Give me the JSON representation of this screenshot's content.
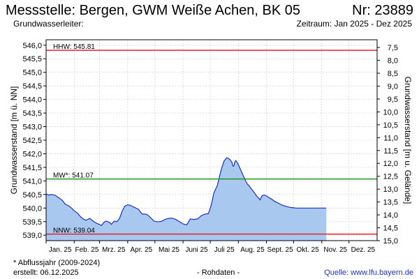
{
  "header": {
    "title": "Messstelle: Bergen, GWM Weiße Achen, BK 05",
    "nr": "Nr: 23889",
    "aquifer_label": "Grundwasserleiter:",
    "period": "Zeitraum: Jan 2025 - Dez 2025"
  },
  "footer": {
    "note": "* Abflussjahr (2009-2024)",
    "created": "erstellt:  06.12.2025",
    "raw": "- Rohdaten -",
    "source": "Quelle: www.lfu.bayern.de"
  },
  "colors": {
    "fill": "#a8c8f0",
    "line": "#1a2fc8",
    "hhw": "#e8202a",
    "nnw": "#e8202a",
    "mw": "#1d9a1d",
    "grid": "#c8c8c8"
  },
  "chart_data": {
    "type": "area",
    "ylabel": "Grundwasserstand [m ü. NN]",
    "ylabel_right": "Grundwasserstand [m u. Gelände]",
    "ylim": [
      538.8,
      546.2
    ],
    "yticks": [
      "546,0",
      "545,5",
      "545,0",
      "544,5",
      "544,0",
      "543,5",
      "543,0",
      "542,5",
      "542,0",
      "541,5",
      "541,0",
      "540,5",
      "540,0",
      "539,5",
      "539,0"
    ],
    "ylim_right": [
      7.2,
      15.0
    ],
    "yticks_right": [
      "7,5",
      "8,0",
      "8,5",
      "9,0",
      "9,5",
      "10,0",
      "10,5",
      "11,0",
      "11,5",
      "12,0",
      "12,5",
      "13,0",
      "13,5",
      "14,0",
      "14,5",
      "15,0"
    ],
    "xlim": [
      0,
      365
    ],
    "months": [
      "Jan. 25",
      "Feb. 25",
      "Mrz. 25",
      "Apr. 25",
      "Mai 25",
      "Juni 25",
      "Juli 25",
      "Aug. 25",
      "Sept. 25",
      "Okt. 25",
      "Nov. 25",
      "Dez. 25"
    ],
    "month_starts": [
      0,
      31,
      59,
      90,
      120,
      151,
      181,
      212,
      243,
      273,
      304,
      334
    ],
    "grid": true,
    "reference_lines": [
      {
        "label": "HHW: 545.81",
        "value": 545.81
      },
      {
        "label": "MW*: 541.07",
        "value": 541.07
      },
      {
        "label": "NNW: 539.04",
        "value": 539.04
      }
    ],
    "series": [
      {
        "x": [
          0,
          3,
          6,
          10,
          14,
          18,
          21,
          25,
          28,
          31,
          34,
          37,
          40,
          44,
          48,
          52,
          55,
          58,
          61,
          64,
          66,
          68,
          70,
          72,
          75,
          78,
          81,
          84,
          87,
          90,
          93,
          96,
          99,
          102,
          104,
          106,
          109,
          112,
          116,
          119,
          122,
          125,
          128,
          131,
          135,
          139,
          143,
          147,
          151,
          155,
          159,
          163,
          167,
          171,
          175,
          179,
          182,
          185,
          189,
          193,
          196,
          199,
          201,
          203,
          205,
          206,
          207,
          208,
          209,
          210,
          212,
          214,
          216,
          218,
          220,
          222,
          224,
          226,
          228,
          230,
          232,
          234,
          236,
          238,
          240,
          243,
          246,
          249,
          252,
          255,
          258,
          261,
          264,
          267,
          270,
          273,
          276,
          279,
          282,
          285,
          288,
          291,
          294,
          297,
          300,
          303,
          306,
          309
        ],
        "y": [
          540.52,
          540.48,
          540.5,
          540.47,
          540.38,
          540.28,
          540.15,
          540.08,
          540.0,
          539.9,
          539.83,
          539.72,
          539.62,
          539.55,
          539.62,
          539.52,
          539.45,
          539.41,
          539.36,
          539.48,
          539.52,
          539.5,
          539.47,
          539.4,
          539.52,
          539.5,
          539.62,
          539.9,
          540.08,
          540.12,
          540.1,
          540.05,
          540.0,
          539.95,
          539.85,
          539.78,
          539.78,
          539.75,
          539.62,
          539.52,
          539.5,
          539.5,
          539.52,
          539.58,
          539.62,
          539.63,
          539.58,
          539.5,
          539.42,
          539.38,
          539.6,
          539.58,
          539.6,
          539.72,
          539.78,
          539.8,
          540.1,
          540.55,
          540.85,
          541.4,
          541.72,
          541.85,
          541.83,
          541.78,
          541.68,
          541.55,
          541.55,
          541.68,
          541.75,
          541.72,
          541.6,
          541.45,
          541.3,
          541.15,
          541.0,
          540.88,
          540.82,
          540.72,
          540.64,
          540.55,
          540.45,
          540.38,
          540.3,
          540.45,
          540.48,
          540.45,
          540.38,
          540.32,
          540.25,
          540.2,
          540.15,
          540.1,
          540.07,
          540.04,
          540.02,
          540.01,
          540.0,
          540.0,
          540.0,
          540.0,
          540.0,
          540.0,
          540.0,
          540.0,
          540.0,
          540.0,
          540.0,
          540.0
        ]
      }
    ]
  }
}
